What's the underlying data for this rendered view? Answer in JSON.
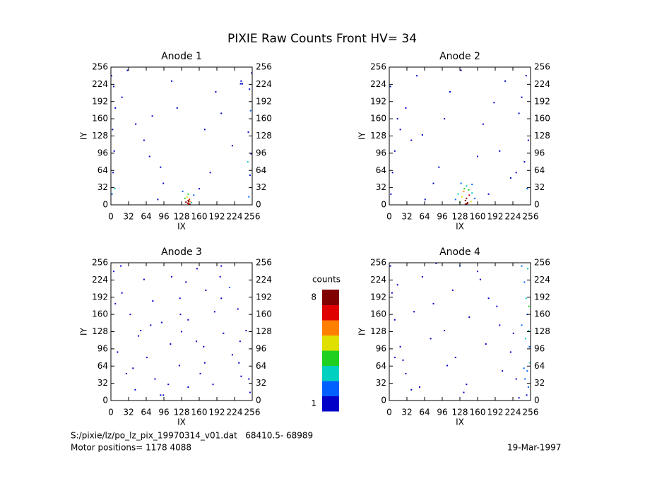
{
  "title": "PIXIE Raw Counts Front HV= 34",
  "annotations": [
    "S:/pixie/lz/po_lz_pix_19970314_v01.dat   68410.5- 68989",
    "Motor positions= 1178 4088",
    "19-Mar-1997"
  ],
  "colorbar": {
    "label": "counts",
    "lim": [
      1,
      8
    ],
    "ticks": [
      1,
      8
    ],
    "colors": [
      "#0000c8",
      "#0060ff",
      "#00d0c0",
      "#20d020",
      "#e0e000",
      "#ff8000",
      "#e00000",
      "#800000"
    ]
  },
  "chart_data": [
    {
      "type": "scatter",
      "title": "Anode 1",
      "x_label": "IX",
      "y_label": "IY",
      "xlim": [
        0,
        256
      ],
      "ylim": [
        0,
        256
      ],
      "xticks": [
        0,
        32,
        64,
        96,
        128,
        160,
        192,
        224,
        256
      ],
      "yticks": [
        0,
        32,
        64,
        96,
        128,
        160,
        192,
        224,
        256
      ],
      "x": [
        2,
        4,
        6,
        3,
        8,
        5,
        1,
        7,
        250,
        252,
        254,
        249,
        253,
        251,
        255,
        248,
        20,
        45,
        70,
        95,
        110,
        60,
        180,
        200,
        220,
        30,
        85,
        120,
        170,
        235,
        136,
        140,
        142,
        138,
        144,
        134,
        146,
        140,
        139,
        141,
        130,
        150,
        141,
        143,
        236,
        238,
        90,
        160,
        190,
        75
      ],
      "y": [
        20,
        60,
        100,
        140,
        180,
        220,
        240,
        30,
        15,
        55,
        95,
        135,
        175,
        215,
        245,
        80,
        200,
        150,
        90,
        40,
        230,
        120,
        60,
        170,
        110,
        250,
        10,
        180,
        140,
        225,
        5,
        8,
        10,
        14,
        6,
        12,
        4,
        20,
        3,
        6,
        25,
        18,
        2,
        1,
        230,
        225,
        70,
        30,
        210,
        165
      ],
      "values": [
        2,
        1,
        1,
        1,
        1,
        1,
        1,
        3,
        2,
        1,
        1,
        1,
        2,
        1,
        1,
        3,
        1,
        1,
        1,
        1,
        1,
        1,
        1,
        1,
        1,
        1,
        1,
        1,
        1,
        1,
        8,
        8,
        7,
        5,
        6,
        4,
        3,
        4,
        8,
        8,
        2,
        2,
        7,
        8,
        1,
        1,
        1,
        1,
        1,
        1
      ]
    },
    {
      "type": "scatter",
      "title": "Anode 2",
      "x_label": "IX",
      "y_label": "IY",
      "xlim": [
        0,
        256
      ],
      "ylim": [
        0,
        256
      ],
      "xticks": [
        0,
        32,
        64,
        96,
        128,
        160,
        192,
        224,
        256
      ],
      "yticks": [
        0,
        32,
        64,
        96,
        128,
        160,
        192,
        224,
        256
      ],
      "x": [
        3,
        6,
        10,
        15,
        2,
        250,
        245,
        252,
        240,
        248,
        30,
        60,
        90,
        110,
        170,
        200,
        220,
        50,
        180,
        130,
        120,
        125,
        128,
        132,
        135,
        138,
        140,
        142,
        145,
        148,
        150,
        155,
        136,
        140,
        144,
        130,
        150,
        140,
        138,
        142,
        100,
        80,
        190,
        210,
        40,
        230,
        65,
        160,
        20,
        235
      ],
      "y": [
        20,
        60,
        100,
        160,
        220,
        30,
        80,
        120,
        200,
        240,
        180,
        130,
        70,
        210,
        150,
        100,
        50,
        240,
        20,
        250,
        10,
        20,
        5,
        15,
        25,
        8,
        12,
        3,
        18,
        6,
        22,
        12,
        30,
        35,
        28,
        40,
        38,
        2,
        1,
        4,
        160,
        40,
        190,
        230,
        120,
        60,
        10,
        90,
        140,
        170
      ],
      "values": [
        1,
        1,
        1,
        1,
        1,
        2,
        1,
        1,
        1,
        1,
        1,
        1,
        1,
        1,
        1,
        1,
        1,
        1,
        1,
        1,
        2,
        3,
        4,
        5,
        6,
        8,
        8,
        8,
        7,
        5,
        3,
        2,
        4,
        3,
        4,
        2,
        2,
        8,
        8,
        8,
        1,
        1,
        1,
        1,
        1,
        1,
        1,
        1,
        1,
        1
      ]
    },
    {
      "type": "scatter",
      "title": "Anode 3",
      "x_label": "IX",
      "y_label": "IY",
      "xlim": [
        0,
        256
      ],
      "ylim": [
        0,
        256
      ],
      "xticks": [
        0,
        32,
        64,
        96,
        128,
        160,
        192,
        224,
        256
      ],
      "yticks": [
        0,
        32,
        64,
        96,
        128,
        160,
        192,
        224,
        256
      ],
      "x": [
        5,
        20,
        35,
        50,
        65,
        80,
        95,
        110,
        125,
        140,
        155,
        170,
        185,
        200,
        215,
        230,
        245,
        12,
        28,
        44,
        60,
        76,
        92,
        108,
        124,
        140,
        156,
        172,
        188,
        204,
        220,
        236,
        252,
        8,
        40,
        72,
        104,
        136,
        168,
        200,
        232,
        18,
        54,
        90,
        126,
        162,
        198,
        234,
        250,
        128
      ],
      "y": [
        240,
        200,
        160,
        120,
        80,
        40,
        10,
        230,
        190,
        150,
        110,
        70,
        30,
        250,
        210,
        170,
        130,
        90,
        50,
        20,
        225,
        185,
        145,
        105,
        65,
        25,
        245,
        205,
        165,
        125,
        85,
        45,
        15,
        180,
        60,
        140,
        30,
        220,
        100,
        190,
        70,
        250,
        130,
        10,
        160,
        50,
        230,
        110,
        40,
        128
      ],
      "values": [
        1,
        1,
        1,
        1,
        1,
        1,
        1,
        1,
        1,
        1,
        1,
        1,
        1,
        1,
        2,
        1,
        1,
        1,
        1,
        1,
        1,
        1,
        1,
        1,
        1,
        1,
        1,
        1,
        1,
        1,
        1,
        1,
        1,
        1,
        1,
        1,
        1,
        1,
        1,
        1,
        1,
        1,
        1,
        1,
        1,
        1,
        1,
        1,
        1,
        1
      ]
    },
    {
      "type": "scatter",
      "title": "Anode 4",
      "x_label": "IX",
      "y_label": "IY",
      "xlim": [
        0,
        256
      ],
      "ylim": [
        0,
        256
      ],
      "xticks": [
        0,
        32,
        64,
        96,
        128,
        160,
        192,
        224,
        256
      ],
      "yticks": [
        0,
        32,
        64,
        96,
        128,
        160,
        192,
        224,
        256
      ],
      "x": [
        2,
        5,
        10,
        20,
        30,
        40,
        60,
        80,
        100,
        120,
        140,
        160,
        180,
        200,
        220,
        230,
        240,
        245,
        248,
        250,
        252,
        254,
        255,
        246,
        249,
        251,
        253,
        247,
        250,
        252,
        15,
        45,
        75,
        105,
        135,
        165,
        195,
        225,
        25,
        55,
        85,
        115,
        145,
        175,
        205,
        235,
        240,
        244,
        10,
        128
      ],
      "y": [
        250,
        200,
        150,
        100,
        50,
        20,
        230,
        180,
        130,
        80,
        30,
        240,
        190,
        140,
        90,
        40,
        250,
        220,
        190,
        160,
        130,
        100,
        70,
        40,
        10,
        245,
        175,
        115,
        55,
        25,
        215,
        165,
        115,
        65,
        15,
        225,
        175,
        125,
        75,
        25,
        255,
        205,
        155,
        105,
        55,
        5,
        140,
        60,
        80,
        250
      ],
      "values": [
        1,
        1,
        1,
        1,
        1,
        1,
        1,
        1,
        1,
        1,
        1,
        1,
        1,
        1,
        1,
        1,
        2,
        2,
        3,
        2,
        3,
        2,
        3,
        2,
        1,
        3,
        4,
        3,
        2,
        2,
        1,
        1,
        1,
        1,
        1,
        1,
        1,
        1,
        1,
        1,
        1,
        1,
        1,
        1,
        1,
        1,
        2,
        2,
        1,
        2
      ]
    }
  ]
}
